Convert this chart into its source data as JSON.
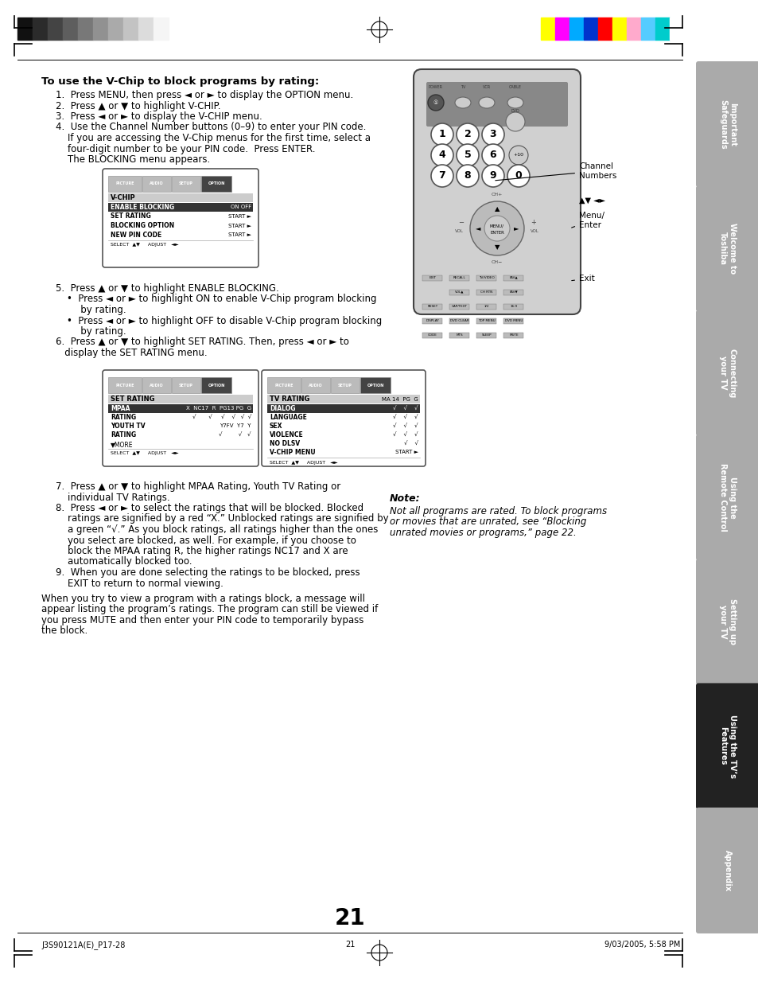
{
  "page_bg": "#ffffff",
  "title_text": "To use the V-Chip to block programs by rating:",
  "page_number": "21",
  "footer_left": "J3S90121A(E)_P17-28",
  "footer_center": "21",
  "footer_right": "9/03/2005, 5:58 PM",
  "sidebar_tabs": [
    {
      "label": "Important\nSafeguards",
      "active": false
    },
    {
      "label": "Welcome to\nToshiba",
      "active": false
    },
    {
      "label": "Connecting\nyour TV",
      "active": false
    },
    {
      "label": "Using the\nRemote Control",
      "active": false
    },
    {
      "label": "Setting up\nyour TV",
      "active": false
    },
    {
      "label": "Using the TV’s\nFeatures",
      "active": true
    },
    {
      "label": "Appendix",
      "active": false
    }
  ],
  "colors_left": [
    "#111111",
    "#2b2b2b",
    "#444444",
    "#5e5e5e",
    "#787878",
    "#919191",
    "#aaaaaa",
    "#c3c3c3",
    "#dcdcdc",
    "#f5f5f5"
  ],
  "colors_right": [
    "#ffff00",
    "#ff00ff",
    "#00aaff",
    "#0033cc",
    "#ff0000",
    "#ffff00",
    "#ffaacc",
    "#55ccff",
    "#00cccc",
    "#ffffff"
  ],
  "tab_inactive_color": "#aaaaaa",
  "tab_active_color": "#222222"
}
